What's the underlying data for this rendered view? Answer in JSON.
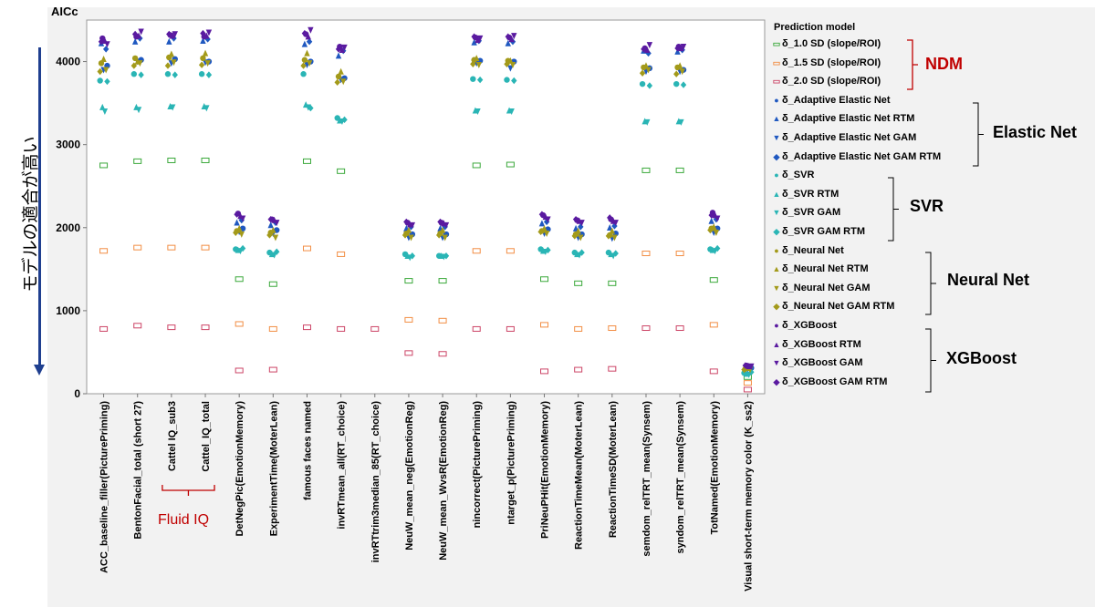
{
  "side_label": "モデルの適合が高い",
  "chart_data": {
    "type": "scatter",
    "title": "",
    "ylabel": "AICc",
    "xlabel": "",
    "ylim": [
      0,
      4500
    ],
    "yticks": [
      0,
      1000,
      2000,
      3000,
      4000
    ],
    "grid": false,
    "legend_placement": "right",
    "legend_title": "Prediction model",
    "categories": [
      "ACC_baseline_filler(PicturePriming)",
      "BentonFacial_total (short 27)",
      "Cattel IQ_sub3",
      "Cattel_IQ_total",
      "DetNegPic(EmotionMemory)",
      "ExperimentTime(MoterLean)",
      "famous faces named",
      "invRTmean_all(RT_choice)",
      "invRTtrim3median_85(RT_choice)",
      "NeuW_mean_neg(EmotionReg)",
      "NeuW_mean_WvsR(EmotionReg)",
      "nincorrect(PicturePriming)",
      "ntarget_p(PicturePriming)",
      "PriNeuPHit(EmotionMemory)",
      "ReactionTimeMean(MoterLean)",
      "ReactionTimeSD(MoterLean)",
      "semdom_relTRT_mean(Synsem)",
      "syndom_relTRT_mean(Synsem)",
      "TotNamed(EmotionMemory)",
      "Visual short-term memory color (K_ss2)"
    ],
    "series": [
      {
        "name": "δ_1.0 SD (slope/ROI)",
        "color": "#3aa83a",
        "marker": "square-open",
        "values": [
          2750,
          2800,
          2810,
          2810,
          1380,
          1320,
          2800,
          2680,
          null,
          1360,
          1360,
          2750,
          2760,
          1380,
          1330,
          1330,
          2690,
          2690,
          1370,
          200
        ]
      },
      {
        "name": "δ_1.5 SD (slope/ROI)",
        "color": "#f28e44",
        "marker": "square-open",
        "values": [
          1720,
          1760,
          1760,
          1760,
          840,
          780,
          1750,
          1680,
          null,
          890,
          880,
          1720,
          1720,
          830,
          780,
          790,
          1690,
          1690,
          830,
          130
        ]
      },
      {
        "name": "δ_2.0 SD (slope/ROI)",
        "color": "#cc4466",
        "marker": "square-open",
        "values": [
          780,
          820,
          800,
          800,
          280,
          290,
          800,
          780,
          780,
          490,
          480,
          780,
          780,
          270,
          290,
          300,
          790,
          790,
          270,
          50
        ]
      },
      {
        "name": "δ_Adaptive Elastic Net",
        "color": "#1f58c0",
        "marker": "circle",
        "values": [
          3950,
          4020,
          4030,
          4000,
          1990,
          1970,
          4000,
          3800,
          null,
          1920,
          1920,
          4010,
          4000,
          1980,
          1920,
          1930,
          3920,
          3900,
          1990,
          310
        ]
      },
      {
        "name": "δ_Adaptive Elastic Net RTM",
        "color": "#1f58c0",
        "marker": "triangle-up",
        "values": [
          4220,
          4240,
          4240,
          4250,
          2060,
          2030,
          4210,
          4070,
          null,
          1990,
          1990,
          4230,
          4220,
          2050,
          1990,
          2000,
          4130,
          4120,
          2080,
          330
        ]
      },
      {
        "name": "δ_Adaptive Elastic Net GAM",
        "color": "#1f58c0",
        "marker": "triangle-down",
        "values": [
          3900,
          4000,
          3980,
          3990,
          1950,
          1930,
          3960,
          3780,
          null,
          1880,
          1880,
          3980,
          3920,
          1930,
          1880,
          1870,
          3880,
          3880,
          1940,
          300
        ]
      },
      {
        "name": "δ_Adaptive Elastic Net GAM RTM",
        "color": "#1f58c0",
        "marker": "diamond",
        "values": [
          4150,
          4280,
          4280,
          4270,
          2090,
          2060,
          4240,
          4130,
          null,
          2010,
          2010,
          4250,
          4240,
          2070,
          2010,
          2020,
          4100,
          4140,
          2100,
          320
        ]
      },
      {
        "name": "δ_SVR",
        "color": "#2ab5b5",
        "marker": "circle",
        "values": [
          3770,
          3850,
          3850,
          3850,
          1740,
          1700,
          3850,
          3320,
          null,
          1680,
          1660,
          3790,
          3780,
          1740,
          1700,
          1700,
          3730,
          3730,
          1740,
          250
        ]
      },
      {
        "name": "δ_SVR RTM",
        "color": "#2ab5b5",
        "marker": "triangle-up",
        "values": [
          3450,
          3450,
          3460,
          3460,
          1730,
          1680,
          3480,
          3290,
          null,
          1660,
          1660,
          3410,
          3410,
          1720,
          1680,
          1680,
          3280,
          3280,
          1730,
          240
        ]
      },
      {
        "name": "δ_SVR GAM",
        "color": "#2ab5b5",
        "marker": "triangle-down",
        "values": [
          3400,
          3420,
          3450,
          3440,
          1720,
          1670,
          3450,
          3280,
          null,
          1640,
          1650,
          3400,
          3400,
          1710,
          1670,
          1660,
          3270,
          3270,
          1720,
          230
        ]
      },
      {
        "name": "δ_SVR GAM RTM",
        "color": "#2ab5b5",
        "marker": "diamond",
        "values": [
          3760,
          3840,
          3840,
          3840,
          1750,
          1710,
          3440,
          3300,
          null,
          1660,
          1660,
          3780,
          3770,
          1730,
          1700,
          1690,
          3710,
          3720,
          1750,
          260
        ]
      },
      {
        "name": "δ_Neural Net",
        "color": "#a39a1a",
        "marker": "circle",
        "values": [
          3980,
          4040,
          4050,
          4040,
          1960,
          1940,
          4020,
          3820,
          null,
          1930,
          1930,
          4020,
          4010,
          1960,
          1920,
          1910,
          3930,
          3930,
          1990,
          300
        ]
      },
      {
        "name": "δ_Neural Net RTM",
        "color": "#a39a1a",
        "marker": "triangle-up",
        "values": [
          4030,
          4000,
          4090,
          4100,
          1990,
          1970,
          4100,
          3880,
          null,
          1970,
          1970,
          4040,
          4010,
          1990,
          1960,
          1960,
          3950,
          3950,
          2010,
          310
        ]
      },
      {
        "name": "δ_Neural Net GAM",
        "color": "#a39a1a",
        "marker": "triangle-down",
        "values": [
          3900,
          3980,
          3990,
          3980,
          1920,
          1880,
          3980,
          3760,
          null,
          1880,
          1880,
          3960,
          3960,
          1930,
          1880,
          1880,
          3900,
          3880,
          1940,
          290
        ]
      },
      {
        "name": "δ_Neural Net GAM RTM",
        "color": "#a39a1a",
        "marker": "diamond",
        "values": [
          3880,
          3950,
          3950,
          3960,
          1940,
          1910,
          3950,
          3750,
          null,
          1910,
          1910,
          3970,
          3970,
          1950,
          1900,
          1900,
          3860,
          3850,
          1970,
          290
        ]
      },
      {
        "name": "δ_XGBoost",
        "color": "#5a1aa0",
        "marker": "circle",
        "values": [
          4280,
          4300,
          4320,
          4300,
          2170,
          2100,
          4330,
          4180,
          null,
          2060,
          2060,
          4290,
          4290,
          2150,
          2090,
          2100,
          4160,
          4180,
          2180,
          340
        ]
      },
      {
        "name": "δ_XGBoost RTM",
        "color": "#5a1aa0",
        "marker": "triangle-up",
        "values": [
          4250,
          4310,
          4310,
          4310,
          2140,
          2090,
          4300,
          4140,
          null,
          2040,
          2050,
          4260,
          4270,
          2130,
          2080,
          2080,
          4140,
          4160,
          2150,
          330
        ]
      },
      {
        "name": "δ_XGBoost GAM",
        "color": "#5a1aa0",
        "marker": "triangle-down",
        "values": [
          4210,
          4360,
          4330,
          4350,
          2110,
          2060,
          4380,
          4170,
          null,
          2030,
          2030,
          4280,
          4310,
          2100,
          2060,
          2060,
          4200,
          4180,
          2110,
          330
        ]
      },
      {
        "name": "δ_XGBoost GAM RTM",
        "color": "#5a1aa0",
        "marker": "diamond",
        "values": [
          4240,
          4330,
          4330,
          4340,
          2160,
          2100,
          4340,
          4150,
          null,
          2070,
          2070,
          4300,
          4300,
          2160,
          2100,
          2120,
          4150,
          4160,
          2150,
          340
        ]
      }
    ]
  },
  "groups": [
    {
      "label": "NDM",
      "color": "#c00000"
    },
    {
      "label": "Elastic Net",
      "color": "#000000"
    },
    {
      "label": "SVR",
      "color": "#000000"
    },
    {
      "label": "Neural Net",
      "color": "#000000"
    },
    {
      "label": "XGBoost",
      "color": "#000000"
    }
  ],
  "fluid_label": "Fluid IQ"
}
